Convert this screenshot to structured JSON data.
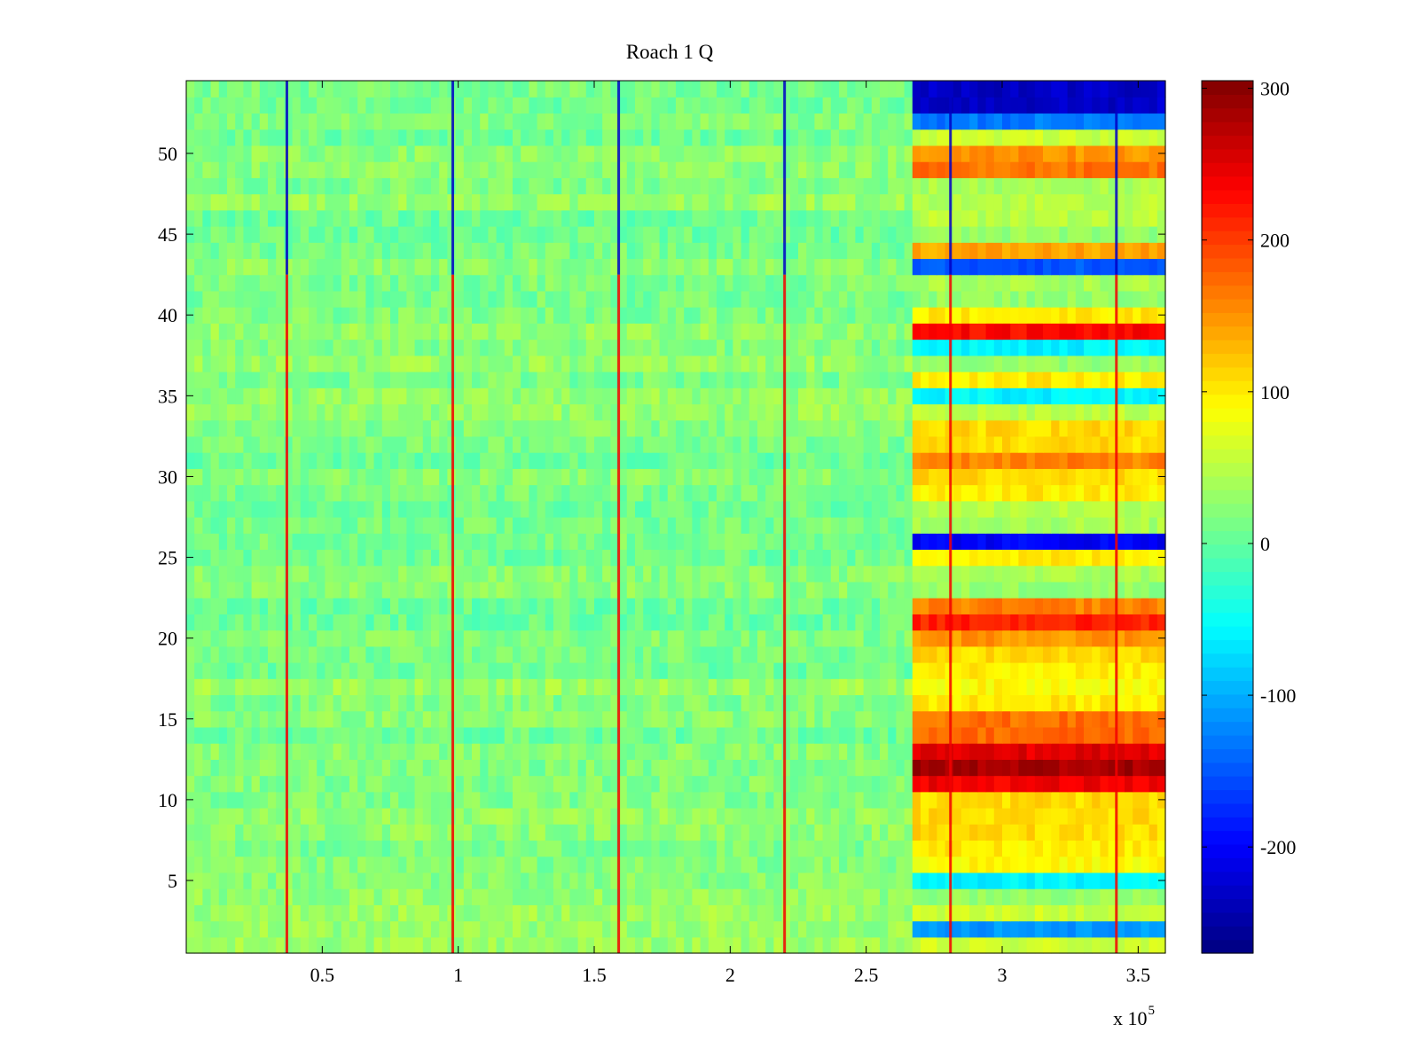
{
  "chart_data": {
    "type": "heatmap",
    "title": "Roach 1 Q",
    "xlabel": "",
    "ylabel": "",
    "colormap": "jet",
    "x_range": [
      0,
      360000
    ],
    "y_range": [
      0.5,
      54.5
    ],
    "color_range": [
      -270,
      305
    ],
    "x_ticks": [
      50000,
      100000,
      150000,
      200000,
      250000,
      300000,
      350000
    ],
    "x_tick_labels": [
      "0.5",
      "1",
      "1.5",
      "2",
      "2.5",
      "3",
      "3.5"
    ],
    "x_exponent_prefix": "x 10",
    "x_exponent_power": "5",
    "y_ticks": [
      5,
      10,
      15,
      20,
      25,
      30,
      35,
      40,
      45,
      50
    ],
    "y_tick_labels": [
      "5",
      "10",
      "15",
      "20",
      "25",
      "30",
      "35",
      "40",
      "45",
      "50"
    ],
    "colorbar_ticks": [
      -200,
      -100,
      0,
      100,
      200,
      300
    ],
    "colorbar_tick_labels": [
      "-200",
      "-100",
      "0",
      "100",
      "200",
      "300"
    ],
    "segments": [
      {
        "x_start": 0,
        "x_end": 265000,
        "typical_value": 20,
        "note": "noise around 0 to 40"
      },
      {
        "x_start": 265000,
        "x_end": 360000,
        "row_values": {
          "1": 60,
          "2": -110,
          "3": 60,
          "4": 30,
          "5": -60,
          "6": 90,
          "7": 100,
          "8": 110,
          "9": 110,
          "10": 110,
          "11": 240,
          "12": 285,
          "13": 250,
          "14": 175,
          "15": 170,
          "16": 100,
          "17": 90,
          "18": 100,
          "19": 110,
          "20": 150,
          "21": 215,
          "22": 160,
          "23": 30,
          "24": 40,
          "25": 100,
          "26": -200,
          "27": 40,
          "28": 50,
          "29": 100,
          "30": 110,
          "31": 160,
          "32": 110,
          "33": 110,
          "34": 50,
          "35": -60,
          "36": 100,
          "37": 30,
          "38": -60,
          "39": 230,
          "40": 100,
          "41": 30,
          "42": 40,
          "43": -150,
          "44": 140,
          "45": 30,
          "46": 50,
          "47": 50,
          "48": 40,
          "49": 170,
          "50": 150,
          "51": 60,
          "52": -130,
          "53": -230,
          "54": -230
        }
      }
    ],
    "periodic_stripes": {
      "x_positions": [
        37000,
        98000,
        159000,
        220000,
        281000,
        342000
      ],
      "upper_rows_value": -230,
      "lower_rows_value": 240
    }
  }
}
